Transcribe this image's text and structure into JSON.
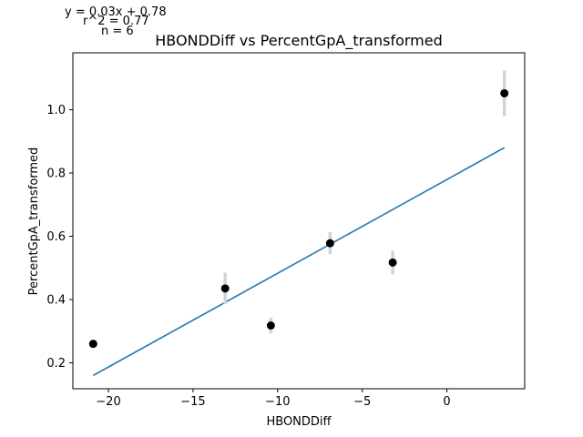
{
  "chart_data": {
    "type": "scatter",
    "title": "HBONDDiff vs PercentGpA_transformed",
    "xlabel": "HBONDDiff",
    "ylabel": "PercentGpA_transformed",
    "xlim": [
      -22.1,
      4.6
    ],
    "ylim": [
      0.118,
      1.18
    ],
    "xticks": [
      -20,
      -15,
      -10,
      -5,
      0
    ],
    "xtick_labels": [
      "−20",
      "−15",
      "−10",
      "−5",
      "0"
    ],
    "yticks": [
      0.2,
      0.4,
      0.6,
      0.8,
      1.0
    ],
    "ytick_labels": [
      "0.2",
      "0.4",
      "0.6",
      "0.8",
      "1.0"
    ],
    "grid": false,
    "annotations": [
      "y = 0.03x + 0.78",
      "r^2 = 0.77",
      "n = 6"
    ],
    "points": [
      {
        "x": -20.9,
        "y": 0.26,
        "err": 0.012
      },
      {
        "x": -13.1,
        "y": 0.435,
        "err": 0.05
      },
      {
        "x": -10.4,
        "y": 0.318,
        "err": 0.025
      },
      {
        "x": -6.9,
        "y": 0.578,
        "err": 0.035
      },
      {
        "x": -3.2,
        "y": 0.517,
        "err": 0.037
      },
      {
        "x": 3.4,
        "y": 1.052,
        "err": 0.072
      }
    ],
    "fit_line": {
      "x": [
        -20.9,
        3.4
      ],
      "y": [
        0.16,
        0.88
      ]
    },
    "colors": {
      "points": "#000000",
      "errorbars": "#d3d3d3",
      "fit": "#1f77b4"
    }
  }
}
